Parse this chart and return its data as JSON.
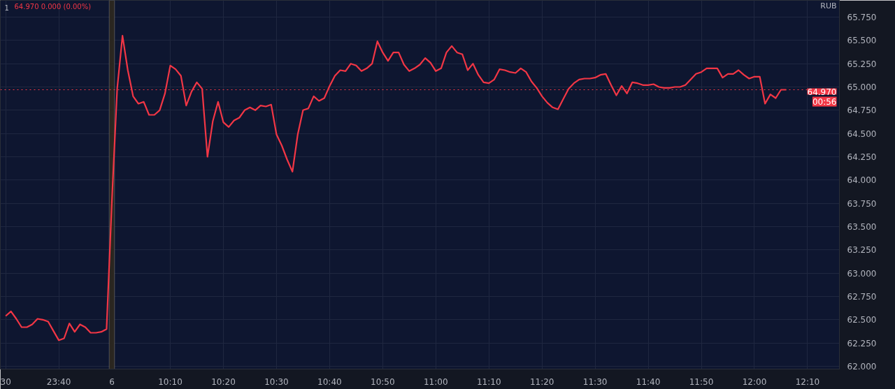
{
  "chart_data": {
    "type": "line",
    "title": "1",
    "subtitle": "64.970  0.000 (0.00%)",
    "ylabel": "RUB",
    "categories": [
      "30",
      null,
      null,
      null,
      null,
      null,
      null,
      null,
      null,
      null,
      "23:40",
      null,
      null,
      null,
      null,
      null,
      null,
      null,
      null,
      null,
      "6",
      null,
      null,
      null,
      null,
      null,
      null,
      null,
      null,
      null,
      null,
      "10:10",
      null,
      null,
      null,
      null,
      null,
      null,
      null,
      null,
      null,
      "10:20",
      null,
      null,
      null,
      null,
      null,
      null,
      null,
      null,
      null,
      "10:30",
      null,
      null,
      null,
      null,
      null,
      null,
      null,
      null,
      null,
      "10:40",
      null,
      null,
      null,
      null,
      null,
      null,
      null,
      null,
      null,
      "10:50",
      null,
      null,
      null,
      null,
      null,
      null,
      null,
      null,
      null,
      "11:00",
      null,
      null,
      null,
      null,
      null,
      null,
      null,
      null,
      null,
      "11:10",
      null,
      null,
      null,
      null,
      null,
      null,
      null,
      null,
      null,
      "11:20",
      null,
      null,
      null,
      null,
      null,
      null,
      null,
      null,
      null,
      "11:30",
      null,
      null,
      null,
      null,
      null,
      null,
      null,
      null,
      null,
      "11:40",
      null,
      null,
      null,
      null,
      null,
      null,
      null,
      null,
      null,
      "11:50",
      null,
      null,
      null,
      null,
      null,
      null,
      null,
      null,
      null,
      "12:00",
      null,
      null,
      null,
      null,
      null,
      null,
      null,
      null,
      null,
      "12:10",
      null,
      null,
      null,
      null,
      null
    ],
    "series": [
      {
        "color": "#f23645",
        "values": [
          62.54,
          62.59,
          62.51,
          62.42,
          62.42,
          62.45,
          62.51,
          62.5,
          62.48,
          62.38,
          62.28,
          62.3,
          62.46,
          62.37,
          62.45,
          62.42,
          62.36,
          62.36,
          62.37,
          62.4,
          63.77,
          64.98,
          65.55,
          65.18,
          64.9,
          64.82,
          64.84,
          64.7,
          64.7,
          64.75,
          64.93,
          65.23,
          65.19,
          65.12,
          64.8,
          64.95,
          65.05,
          64.98,
          64.25,
          64.63,
          64.84,
          64.62,
          64.57,
          64.64,
          64.67,
          64.75,
          64.78,
          64.75,
          64.8,
          64.79,
          64.81,
          64.49,
          64.37,
          64.22,
          64.09,
          64.49,
          64.75,
          64.77,
          64.9,
          64.85,
          64.88,
          65.01,
          65.12,
          65.18,
          65.17,
          65.25,
          65.23,
          65.17,
          65.2,
          65.25,
          65.49,
          65.37,
          65.28,
          65.37,
          65.37,
          65.24,
          65.17,
          65.2,
          65.24,
          65.31,
          65.26,
          65.17,
          65.2,
          65.37,
          65.44,
          65.37,
          65.35,
          65.18,
          65.25,
          65.13,
          65.05,
          65.04,
          65.08,
          65.19,
          65.18,
          65.16,
          65.15,
          65.2,
          65.16,
          65.06,
          64.99,
          64.9,
          64.83,
          64.78,
          64.76,
          64.87,
          64.98,
          65.04,
          65.08,
          65.09,
          65.09,
          65.1,
          65.13,
          65.14,
          65.02,
          64.91,
          65.01,
          64.93,
          65.05,
          65.04,
          65.02,
          65.02,
          65.03,
          65.0,
          64.99,
          64.99,
          65.0,
          65.0,
          65.02,
          65.08,
          65.14,
          65.16,
          65.2,
          65.2,
          65.2,
          65.1,
          65.14,
          65.14,
          65.18,
          65.13,
          65.09,
          65.11,
          65.11,
          64.82,
          64.92,
          64.88,
          64.97,
          64.97,
          null,
          null,
          null,
          null,
          null,
          null,
          null,
          null,
          null
        ]
      }
    ],
    "ylim": [
      61.97,
      65.93
    ],
    "yticks": [
      {
        "value": 62.0,
        "label": "62.000"
      },
      {
        "value": 62.25,
        "label": "62.250"
      },
      {
        "value": 62.5,
        "label": "62.500"
      },
      {
        "value": 62.75,
        "label": "62.750"
      },
      {
        "value": 63.0,
        "label": "63.000"
      },
      {
        "value": 63.25,
        "label": "63.250"
      },
      {
        "value": 63.5,
        "label": "63.500"
      },
      {
        "value": 63.75,
        "label": "63.750"
      },
      {
        "value": 64.0,
        "label": "64.000"
      },
      {
        "value": 64.25,
        "label": "64.250"
      },
      {
        "value": 64.5,
        "label": "64.500"
      },
      {
        "value": 64.75,
        "label": "64.750"
      },
      {
        "value": 65.0,
        "label": "65.000"
      },
      {
        "value": 65.25,
        "label": "65.250"
      },
      {
        "value": 65.5,
        "label": "65.500"
      },
      {
        "value": 65.75,
        "label": "65.750"
      }
    ],
    "ref_lines": [
      {
        "axis": "y",
        "value": 64.97,
        "label": "64.970",
        "color": "#f23645",
        "line_style": "dotted"
      }
    ],
    "bands": [
      {
        "axis": "x",
        "from": "6",
        "to": "6",
        "color": "#2a2620"
      }
    ],
    "annotations": [
      "00:56"
    ],
    "grid": true,
    "line_style": "solid"
  }
}
